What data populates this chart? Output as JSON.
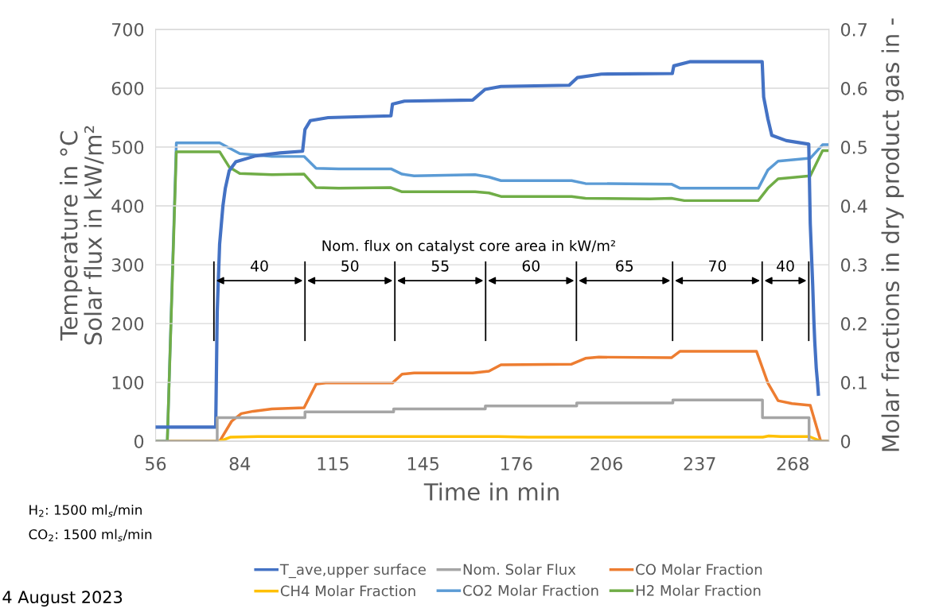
{
  "chart_data": {
    "type": "line",
    "xlabel": "Time in min",
    "ylabel": "Temperature in °C\nSolar flux in kW/m²",
    "y2label": "Molar fractions in dry product gas in -",
    "xlim": [
      56,
      280
    ],
    "xticks": [
      56,
      84,
      115,
      145,
      176,
      206,
      237,
      268
    ],
    "ylim": [
      0,
      700
    ],
    "yticks": [
      0,
      100,
      200,
      300,
      400,
      500,
      600,
      700
    ],
    "y2lim": [
      0,
      0.7
    ],
    "y2ticks": [
      0,
      0.1,
      0.2,
      0.3,
      0.4,
      0.5,
      0.6,
      0.7
    ],
    "grid": "y",
    "legend": "bottom",
    "series": [
      {
        "name": "T_ave,upper surface",
        "color": "#4472c4",
        "x": [
          56,
          76,
          76.5,
          77.3,
          78.4,
          79.2,
          80.5,
          82.7,
          89.3,
          97.4,
          104.9,
          105.7,
          107.5,
          113.4,
          134.3,
          134.8,
          138.8,
          161.5,
          165.6,
          170.9,
          193.6,
          196.3,
          204.3,
          227.9,
          228.4,
          233.7,
          257.8,
          258.3,
          259.7,
          261,
          265.8,
          273.3,
          273.8,
          274.6,
          275,
          275.3,
          275.8,
          276.2,
          276.5
        ],
        "values": [
          24,
          24,
          220,
          335,
          400,
          430,
          460,
          475,
          485,
          490,
          493,
          530,
          545,
          550,
          553,
          573,
          578,
          580,
          598,
          603,
          605,
          618,
          624,
          625,
          638,
          645,
          645,
          585,
          548,
          520,
          511,
          505,
          370,
          267,
          205,
          169,
          124,
          101,
          80
        ]
      },
      {
        "name": "Nom. Solar Flux",
        "color": "#a5a5a5",
        "x": [
          56,
          76.5,
          76.5,
          105.7,
          105.7,
          135.2,
          135.2,
          165.7,
          165.7,
          196.1,
          196.1,
          228.1,
          228.1,
          257.9,
          257.9,
          273.4,
          273.4,
          280
        ],
        "values": [
          0,
          0,
          40,
          40,
          50,
          50,
          55,
          55,
          60,
          60,
          65,
          65,
          70,
          70,
          40,
          40,
          0,
          0
        ]
      },
      {
        "name": "CO Molar Fraction",
        "color": "#ed7d31",
        "axis": "y2",
        "x": [
          56,
          77.3,
          81.3,
          84.5,
          88.5,
          94.7,
          105.4,
          109.4,
          112.6,
          134.8,
          138,
          142,
          161.5,
          166.9,
          170.9,
          194.4,
          199,
          203.5,
          227.6,
          230.5,
          255.9,
          259.7,
          263.1,
          267.7,
          273.8,
          277.3,
          280
        ],
        "values": [
          0,
          0,
          0.034,
          0.047,
          0.051,
          0.055,
          0.057,
          0.097,
          0.099,
          0.099,
          0.114,
          0.116,
          0.116,
          0.119,
          0.13,
          0.131,
          0.141,
          0.143,
          0.142,
          0.153,
          0.153,
          0.099,
          0.069,
          0.064,
          0.061,
          0,
          0
        ]
      },
      {
        "name": "CH4 Molar Fraction",
        "color": "#ffc000",
        "axis": "y2",
        "x": [
          56,
          77.3,
          81,
          90,
          140,
          170,
          180,
          258,
          260,
          264,
          273.5,
          277.3,
          280
        ],
        "values": [
          0,
          0,
          0.007,
          0.008,
          0.008,
          0.008,
          0.007,
          0.007,
          0.009,
          0.008,
          0.008,
          0,
          0
        ]
      },
      {
        "name": "CO2 Molar Fraction",
        "color": "#5b9bd5",
        "axis": "y2",
        "x": [
          56,
          59.9,
          62.9,
          77.3,
          84,
          94.7,
          105.4,
          109.4,
          116.9,
          134.3,
          138,
          142,
          162.3,
          166.9,
          170.9,
          194.4,
          199,
          227.6,
          230.5,
          256.5,
          259.7,
          263.1,
          273.8,
          277.9,
          280
        ],
        "values": [
          0,
          0,
          0.507,
          0.507,
          0.489,
          0.484,
          0.484,
          0.464,
          0.463,
          0.463,
          0.454,
          0.451,
          0.453,
          0.449,
          0.443,
          0.443,
          0.438,
          0.437,
          0.43,
          0.43,
          0.461,
          0.476,
          0.481,
          0.504,
          0.504
        ]
      },
      {
        "name": "H2 Molar Fraction",
        "color": "#70ad47",
        "axis": "y2",
        "x": [
          56,
          59.9,
          62.9,
          77.3,
          80.5,
          84,
          94.7,
          105.4,
          109.4,
          116.9,
          134.3,
          138,
          142,
          162.3,
          166.9,
          170.9,
          194.4,
          199,
          220.4,
          227.6,
          231.9,
          256.5,
          259.7,
          263.1,
          273.8,
          277.9,
          280
        ],
        "values": [
          0,
          0,
          0.492,
          0.492,
          0.466,
          0.455,
          0.453,
          0.454,
          0.431,
          0.43,
          0.431,
          0.424,
          0.424,
          0.424,
          0.422,
          0.416,
          0.416,
          0.413,
          0.412,
          0.413,
          0.409,
          0.409,
          0.43,
          0.446,
          0.451,
          0.494,
          0.494
        ]
      }
    ],
    "ref_lines": [
      {
        "axis": "x",
        "value": 75.4,
        "color": "#000000"
      },
      {
        "axis": "x",
        "value": 105.7,
        "color": "#000000"
      },
      {
        "axis": "x",
        "value": 135.6,
        "color": "#000000"
      },
      {
        "axis": "x",
        "value": 165.8,
        "color": "#000000"
      },
      {
        "axis": "x",
        "value": 196,
        "color": "#000000"
      },
      {
        "axis": "x",
        "value": 228,
        "color": "#000000"
      },
      {
        "axis": "x",
        "value": 257.8,
        "color": "#000000"
      },
      {
        "axis": "x",
        "value": 273.3,
        "color": "#000000"
      }
    ],
    "annotations": [
      "Nom. flux on catalyst core area in kW/m²",
      "H$_{2}$: 1500 ml$_{s}$/min",
      "CO$_{2}$: 1500 ml$_{s}$/min",
      "4 August 2023",
      "40",
      "50",
      "55",
      "60",
      "65",
      "70",
      "40"
    ]
  }
}
